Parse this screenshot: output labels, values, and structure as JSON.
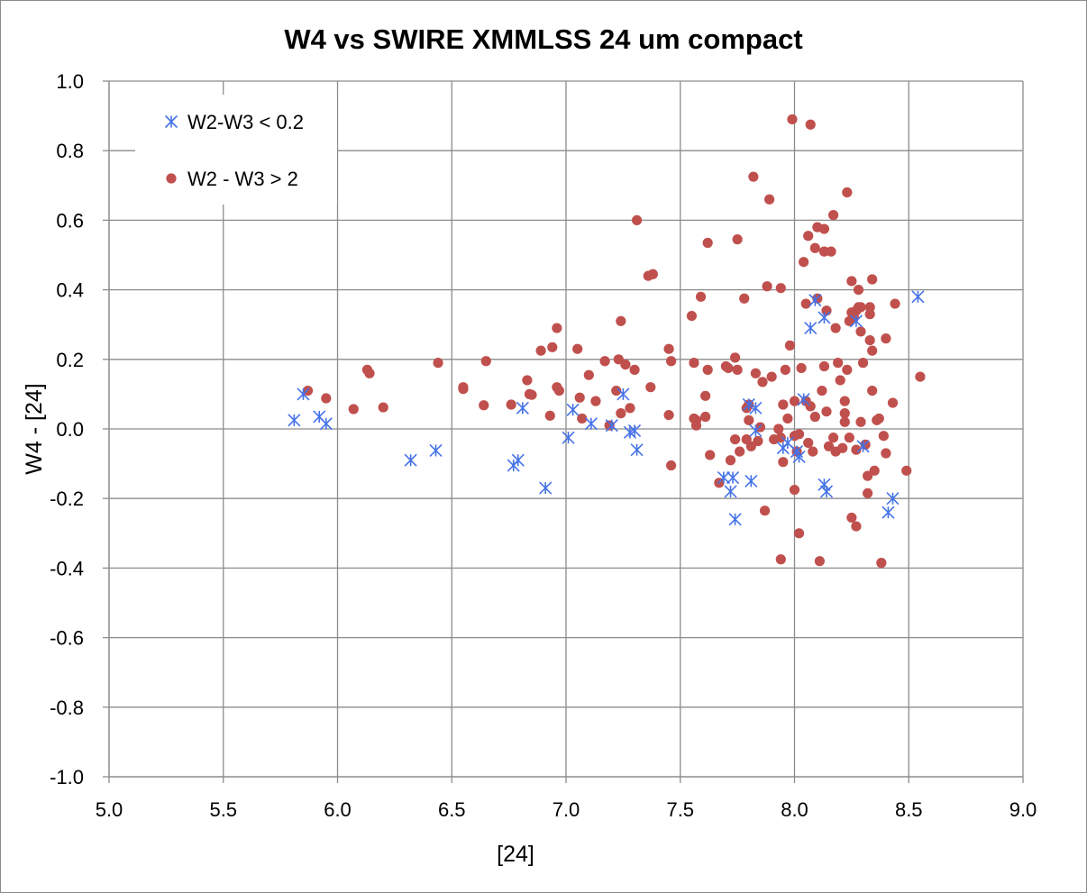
{
  "chart_data": {
    "type": "scatter",
    "title": "W4 vs SWIRE XMMLSS 24 um compact",
    "xlabel": "[24]",
    "ylabel": "W4 - [24]",
    "xlim": [
      5.0,
      9.0
    ],
    "ylim": [
      -1.0,
      1.0
    ],
    "xticks": [
      5.0,
      5.5,
      6.0,
      6.5,
      7.0,
      7.5,
      8.0,
      8.5,
      9.0
    ],
    "yticks": [
      1.0,
      0.8,
      0.6,
      0.4,
      0.2,
      0.0,
      -0.2,
      -0.4,
      -0.6,
      -0.8,
      -1.0
    ],
    "xtick_labels": [
      "5.0",
      "5.5",
      "6.0",
      "6.5",
      "7.0",
      "7.5",
      "8.0",
      "8.5",
      "9.0"
    ],
    "ytick_labels": [
      "1.0",
      "0.8",
      "0.6",
      "0.4",
      "0.2",
      "0.0",
      "-0.2",
      "-0.4",
      "-0.6",
      "-0.8",
      "-1.0"
    ],
    "grid": true,
    "legend_position": "top-left",
    "series": [
      {
        "name": "W2-W3 < 0.2",
        "marker": "asterisk",
        "color": "#4472e8",
        "points": [
          [
            5.81,
            0.025
          ],
          [
            5.85,
            0.1
          ],
          [
            5.92,
            0.035
          ],
          [
            5.95,
            0.015
          ],
          [
            6.32,
            -0.09
          ],
          [
            6.43,
            -0.062
          ],
          [
            6.77,
            -0.105
          ],
          [
            6.79,
            -0.09
          ],
          [
            6.81,
            0.06
          ],
          [
            6.91,
            -0.17
          ],
          [
            7.01,
            -0.025
          ],
          [
            7.03,
            0.055
          ],
          [
            7.11,
            0.015
          ],
          [
            7.2,
            0.01
          ],
          [
            7.25,
            0.1
          ],
          [
            7.28,
            -0.01
          ],
          [
            7.3,
            -0.005
          ],
          [
            7.31,
            -0.06
          ],
          [
            7.69,
            -0.14
          ],
          [
            7.72,
            -0.18
          ],
          [
            7.73,
            -0.14
          ],
          [
            7.74,
            -0.26
          ],
          [
            7.8,
            0.07
          ],
          [
            7.81,
            -0.15
          ],
          [
            7.83,
            0.06
          ],
          [
            7.83,
            -0.005
          ],
          [
            7.95,
            -0.055
          ],
          [
            7.97,
            -0.04
          ],
          [
            8.01,
            -0.065
          ],
          [
            8.02,
            -0.08
          ],
          [
            8.04,
            0.085
          ],
          [
            8.07,
            0.29
          ],
          [
            8.09,
            0.37
          ],
          [
            8.13,
            -0.16
          ],
          [
            8.13,
            0.32
          ],
          [
            8.14,
            -0.18
          ],
          [
            8.27,
            0.31
          ],
          [
            8.3,
            -0.05
          ],
          [
            8.41,
            -0.24
          ],
          [
            8.43,
            -0.2
          ],
          [
            8.54,
            0.38
          ]
        ]
      },
      {
        "name": "W2 - W3 > 2",
        "marker": "circle",
        "color": "#c0504d",
        "points": [
          [
            5.87,
            0.11
          ],
          [
            5.95,
            0.088
          ],
          [
            6.07,
            0.057
          ],
          [
            6.13,
            0.17
          ],
          [
            6.14,
            0.16
          ],
          [
            6.2,
            0.062
          ],
          [
            6.44,
            0.19
          ],
          [
            6.55,
            0.12
          ],
          [
            6.55,
            0.115
          ],
          [
            6.64,
            0.068
          ],
          [
            6.65,
            0.195
          ],
          [
            6.76,
            0.07
          ],
          [
            6.83,
            0.14
          ],
          [
            6.84,
            0.1
          ],
          [
            6.85,
            0.098
          ],
          [
            6.89,
            0.225
          ],
          [
            6.93,
            0.038
          ],
          [
            6.94,
            0.235
          ],
          [
            6.96,
            0.29
          ],
          [
            6.96,
            0.12
          ],
          [
            6.97,
            0.11
          ],
          [
            7.05,
            0.23
          ],
          [
            7.06,
            0.09
          ],
          [
            7.07,
            0.03
          ],
          [
            7.1,
            0.155
          ],
          [
            7.13,
            0.08
          ],
          [
            7.17,
            0.195
          ],
          [
            7.19,
            0.01
          ],
          [
            7.22,
            0.11
          ],
          [
            7.23,
            0.2
          ],
          [
            7.24,
            0.045
          ],
          [
            7.24,
            0.31
          ],
          [
            7.26,
            0.185
          ],
          [
            7.28,
            0.06
          ],
          [
            7.3,
            0.17
          ],
          [
            7.31,
            0.6
          ],
          [
            7.36,
            0.44
          ],
          [
            7.37,
            0.12
          ],
          [
            7.38,
            0.445
          ],
          [
            7.45,
            0.04
          ],
          [
            7.45,
            0.23
          ],
          [
            7.46,
            -0.105
          ],
          [
            7.46,
            0.195
          ],
          [
            7.55,
            0.325
          ],
          [
            7.56,
            0.19
          ],
          [
            7.56,
            0.03
          ],
          [
            7.57,
            0.025
          ],
          [
            7.57,
            0.01
          ],
          [
            7.59,
            0.38
          ],
          [
            7.61,
            0.095
          ],
          [
            7.61,
            0.035
          ],
          [
            7.62,
            0.535
          ],
          [
            7.62,
            0.17
          ],
          [
            7.63,
            -0.075
          ],
          [
            7.67,
            -0.155
          ],
          [
            7.7,
            0.18
          ],
          [
            7.71,
            0.175
          ],
          [
            7.72,
            -0.09
          ],
          [
            7.74,
            -0.03
          ],
          [
            7.74,
            0.205
          ],
          [
            7.75,
            0.545
          ],
          [
            7.75,
            0.17
          ],
          [
            7.76,
            -0.065
          ],
          [
            7.78,
            0.375
          ],
          [
            7.79,
            0.06
          ],
          [
            7.79,
            -0.03
          ],
          [
            7.8,
            0.07
          ],
          [
            7.8,
            0.025
          ],
          [
            7.81,
            -0.05
          ],
          [
            7.82,
            0.725
          ],
          [
            7.83,
            0.16
          ],
          [
            7.84,
            -0.035
          ],
          [
            7.85,
            0.005
          ],
          [
            7.86,
            0.135
          ],
          [
            7.87,
            -0.235
          ],
          [
            7.88,
            0.41
          ],
          [
            7.89,
            0.66
          ],
          [
            7.9,
            0.15
          ],
          [
            7.91,
            -0.03
          ],
          [
            7.93,
            0.0
          ],
          [
            7.94,
            -0.375
          ],
          [
            7.94,
            0.405
          ],
          [
            7.94,
            -0.025
          ],
          [
            7.95,
            0.07
          ],
          [
            7.95,
            -0.095
          ],
          [
            7.96,
            0.17
          ],
          [
            7.97,
            0.03
          ],
          [
            7.98,
            0.24
          ],
          [
            7.99,
            0.89
          ],
          [
            8.0,
            -0.175
          ],
          [
            8.0,
            0.08
          ],
          [
            8.0,
            -0.02
          ],
          [
            8.01,
            -0.065
          ],
          [
            8.02,
            -0.3
          ],
          [
            8.02,
            -0.015
          ],
          [
            8.03,
            0.175
          ],
          [
            8.04,
            0.48
          ],
          [
            8.05,
            0.36
          ],
          [
            8.05,
            0.08
          ],
          [
            8.06,
            0.555
          ],
          [
            8.06,
            -0.04
          ],
          [
            8.07,
            0.875
          ],
          [
            8.07,
            0.065
          ],
          [
            8.08,
            -0.065
          ],
          [
            8.09,
            0.035
          ],
          [
            8.09,
            0.52
          ],
          [
            8.1,
            0.375
          ],
          [
            8.1,
            0.58
          ],
          [
            8.11,
            -0.38
          ],
          [
            8.12,
            0.11
          ],
          [
            8.13,
            0.51
          ],
          [
            8.13,
            0.575
          ],
          [
            8.13,
            0.18
          ],
          [
            8.14,
            0.34
          ],
          [
            8.14,
            0.05
          ],
          [
            8.15,
            -0.05
          ],
          [
            8.16,
            0.51
          ],
          [
            8.17,
            0.615
          ],
          [
            8.17,
            -0.025
          ],
          [
            8.18,
            0.29
          ],
          [
            8.18,
            -0.065
          ],
          [
            8.19,
            0.19
          ],
          [
            8.2,
            0.14
          ],
          [
            8.21,
            -0.055
          ],
          [
            8.22,
            0.08
          ],
          [
            8.22,
            0.045
          ],
          [
            8.22,
            0.02
          ],
          [
            8.23,
            0.68
          ],
          [
            8.23,
            0.17
          ],
          [
            8.24,
            -0.025
          ],
          [
            8.24,
            0.31
          ],
          [
            8.25,
            0.425
          ],
          [
            8.25,
            -0.255
          ],
          [
            8.25,
            0.335
          ],
          [
            8.26,
            0.32
          ],
          [
            8.27,
            -0.28
          ],
          [
            8.27,
            0.34
          ],
          [
            8.27,
            -0.06
          ],
          [
            8.28,
            0.4
          ],
          [
            8.28,
            0.35
          ],
          [
            8.29,
            0.28
          ],
          [
            8.29,
            0.35
          ],
          [
            8.29,
            0.02
          ],
          [
            8.3,
            0.19
          ],
          [
            8.31,
            -0.045
          ],
          [
            8.32,
            -0.185
          ],
          [
            8.32,
            -0.135
          ],
          [
            8.33,
            0.33
          ],
          [
            8.33,
            0.35
          ],
          [
            8.33,
            0.255
          ],
          [
            8.34,
            0.43
          ],
          [
            8.34,
            0.11
          ],
          [
            8.34,
            0.225
          ],
          [
            8.35,
            -0.12
          ],
          [
            8.36,
            0.025
          ],
          [
            8.37,
            0.03
          ],
          [
            8.38,
            -0.385
          ],
          [
            8.39,
            -0.02
          ],
          [
            8.4,
            0.26
          ],
          [
            8.4,
            -0.07
          ],
          [
            8.43,
            0.075
          ],
          [
            8.44,
            0.36
          ],
          [
            8.49,
            -0.12
          ],
          [
            8.55,
            0.15
          ]
        ]
      }
    ]
  }
}
